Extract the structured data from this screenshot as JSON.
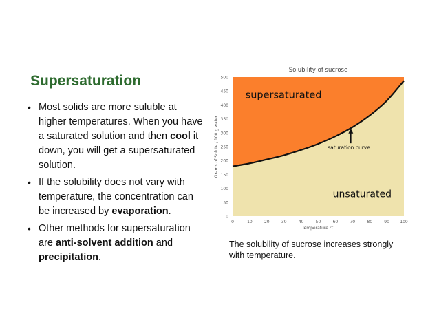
{
  "slide": {
    "title": "Supersaturation",
    "bullets": [
      [
        {
          "t": "Most solids are more suluble at higher temperatures. When you have a saturated solution and then ",
          "b": false
        },
        {
          "t": "cool",
          "b": true
        },
        {
          "t": " it down, you will get a supersaturated solution.",
          "b": false
        }
      ],
      [
        {
          "t": "If the solubility does not vary with temperature, the concentration can be increased by ",
          "b": false
        },
        {
          "t": "evaporation",
          "b": true
        },
        {
          "t": ".",
          "b": false
        }
      ],
      [
        {
          "t": "Other methods for supersaturation are ",
          "b": false
        },
        {
          "t": "anti-solvent addition",
          "b": true
        },
        {
          "t": " and ",
          "b": false
        },
        {
          "t": "precipitation",
          "b": true
        },
        {
          "t": ".",
          "b": false
        }
      ]
    ],
    "caption": "The solubility of sucrose increases strongly with temperature."
  },
  "chart_data": {
    "type": "area",
    "title": "Solubility of sucrose",
    "xlabel": "Temperature °C",
    "ylabel": "Grams of Solute / 100 g water",
    "xlim": [
      0,
      100
    ],
    "ylim": [
      0,
      500
    ],
    "xticks": [
      0,
      10,
      20,
      30,
      40,
      50,
      60,
      70,
      80,
      90,
      100
    ],
    "yticks": [
      0,
      50,
      100,
      150,
      200,
      250,
      300,
      350,
      400,
      450,
      500
    ],
    "grid": false,
    "series": [
      {
        "x": [
          0,
          10,
          20,
          30,
          40,
          50,
          60,
          70,
          80,
          90,
          100
        ],
        "values": [
          179,
          190,
          204,
          219,
          238,
          260,
          287,
          320,
          362,
          415,
          487
        ]
      }
    ],
    "regions": {
      "above": {
        "label": "supersaturated",
        "color": "#fb7f2c"
      },
      "below": {
        "label": "unsaturated",
        "color": "#efe3ad"
      }
    },
    "curve_label": "saturation curve",
    "colors": {
      "curve": "#111111",
      "axis_text": "#555555"
    }
  }
}
